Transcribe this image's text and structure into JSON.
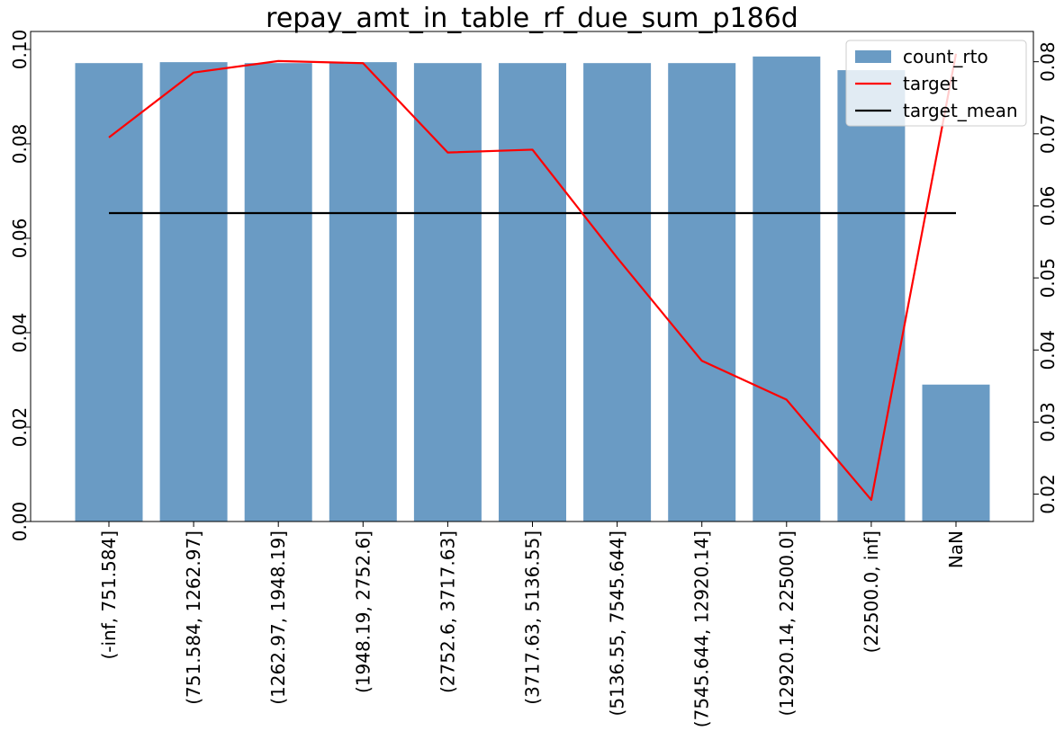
{
  "chart_data": {
    "type": "bar",
    "title": "repay_amt_in_table_rf_due_sum_p186d",
    "xlabel": "",
    "ylabel": "",
    "categories": [
      "(-inf, 751.584]",
      "(751.584, 1262.97]",
      "(1262.97, 1948.19]",
      "(1948.19, 2752.6]",
      "(2752.6, 3717.63]",
      "(3717.63, 5136.55]",
      "(5136.55, 7545.644]",
      "(7545.644, 12920.14]",
      "(12920.14, 22500.0]",
      "(22500.0, inf]",
      "NaN"
    ],
    "series": [
      {
        "name": "count_rto",
        "type": "bar",
        "axis": "left",
        "color": "#6a9bc4",
        "values": [
          0.0971,
          0.0973,
          0.0971,
          0.0973,
          0.0971,
          0.0971,
          0.0971,
          0.0971,
          0.0985,
          0.0956,
          0.029
        ]
      },
      {
        "name": "target",
        "type": "line",
        "axis": "right",
        "color": "#ff0000",
        "values": [
          0.0695,
          0.0785,
          0.0801,
          0.0798,
          0.0674,
          0.0678,
          0.0528,
          0.0385,
          0.0331,
          0.0192,
          0.0811
        ]
      },
      {
        "name": "target_mean",
        "type": "line",
        "axis": "right",
        "color": "#000000",
        "values": [
          0.059,
          0.059,
          0.059,
          0.059,
          0.059,
          0.059,
          0.059,
          0.059,
          0.059,
          0.059,
          0.059
        ]
      }
    ],
    "y_left": {
      "lim": [
        0,
        0.1038
      ],
      "ticks": [
        "0.00",
        "0.02",
        "0.04",
        "0.06",
        "0.08",
        "0.10"
      ],
      "tick_values": [
        0,
        0.02,
        0.04,
        0.06,
        0.08,
        0.1
      ]
    },
    "y_right": {
      "lim": [
        0.0162,
        0.0842
      ],
      "ticks": [
        "0.02",
        "0.03",
        "0.04",
        "0.05",
        "0.06",
        "0.07",
        "0.08"
      ],
      "tick_values": [
        0.02,
        0.03,
        0.04,
        0.05,
        0.06,
        0.07,
        0.08
      ]
    },
    "grid": false,
    "legend_position": "top-right"
  }
}
